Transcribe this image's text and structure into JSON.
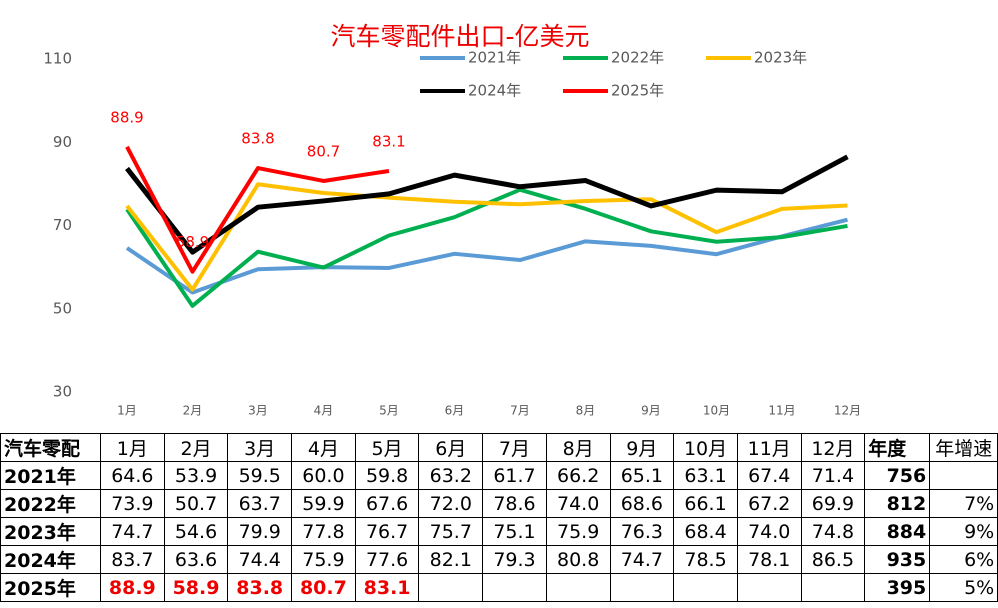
{
  "chart_data": {
    "type": "line",
    "title": "汽车零配件出口-亿美元",
    "categories": [
      "1月",
      "2月",
      "3月",
      "4月",
      "5月",
      "6月",
      "7月",
      "8月",
      "9月",
      "10月",
      "11月",
      "12月"
    ],
    "series": [
      {
        "name": "2021年",
        "color": "#5b9bd5",
        "values": [
          64.6,
          53.9,
          59.5,
          60.0,
          59.8,
          63.2,
          61.7,
          66.2,
          65.1,
          63.1,
          67.4,
          71.4
        ]
      },
      {
        "name": "2022年",
        "color": "#00b050",
        "values": [
          73.9,
          50.7,
          63.7,
          59.9,
          67.6,
          72.0,
          78.6,
          74.0,
          68.6,
          66.1,
          67.2,
          69.9
        ]
      },
      {
        "name": "2023年",
        "color": "#ffc000",
        "values": [
          74.7,
          54.6,
          79.9,
          77.8,
          76.7,
          75.7,
          75.1,
          75.9,
          76.3,
          68.4,
          74.0,
          74.8
        ]
      },
      {
        "name": "2024年",
        "color": "#000000",
        "values": [
          83.7,
          63.6,
          74.4,
          75.9,
          77.6,
          82.1,
          79.3,
          80.8,
          74.7,
          78.5,
          78.1,
          86.5
        ]
      },
      {
        "name": "2025年",
        "color": "#ff0000",
        "values": [
          88.9,
          58.9,
          83.8,
          80.7,
          83.1,
          null,
          null,
          null,
          null,
          null,
          null,
          null
        ],
        "data_labels": true
      }
    ],
    "ylim": [
      30,
      110
    ],
    "yticks": [
      30,
      50,
      70,
      90,
      110
    ],
    "grid": false
  },
  "table": {
    "header": [
      "汽车零配",
      "1月",
      "2月",
      "3月",
      "4月",
      "5月",
      "6月",
      "7月",
      "8月",
      "9月",
      "10月",
      "11月",
      "12月",
      "年度",
      "年增速"
    ],
    "rows": [
      {
        "label": "2021年",
        "values": [
          "64.6",
          "53.9",
          "59.5",
          "60.0",
          "59.8",
          "63.2",
          "61.7",
          "66.2",
          "65.1",
          "63.1",
          "67.4",
          "71.4"
        ],
        "total": "756"
      },
      {
        "label": "2022年",
        "values": [
          "73.9",
          "50.7",
          "63.7",
          "59.9",
          "67.6",
          "72.0",
          "78.6",
          "74.0",
          "68.6",
          "66.1",
          "67.2",
          "69.9"
        ],
        "total": "812",
        "growth": "7%"
      },
      {
        "label": "2023年",
        "values": [
          "74.7",
          "54.6",
          "79.9",
          "77.8",
          "76.7",
          "75.7",
          "75.1",
          "75.9",
          "76.3",
          "68.4",
          "74.0",
          "74.8"
        ],
        "total": "884",
        "growth": "9%"
      },
      {
        "label": "2024年",
        "values": [
          "83.7",
          "63.6",
          "74.4",
          "75.9",
          "77.6",
          "82.1",
          "79.3",
          "80.8",
          "74.7",
          "78.5",
          "78.1",
          "86.5"
        ],
        "total": "935",
        "growth": "6%"
      },
      {
        "label": "2025年",
        "values": [
          "88.9",
          "58.9",
          "83.8",
          "80.7",
          "83.1"
        ],
        "total": "395",
        "growth": "5%"
      }
    ]
  }
}
